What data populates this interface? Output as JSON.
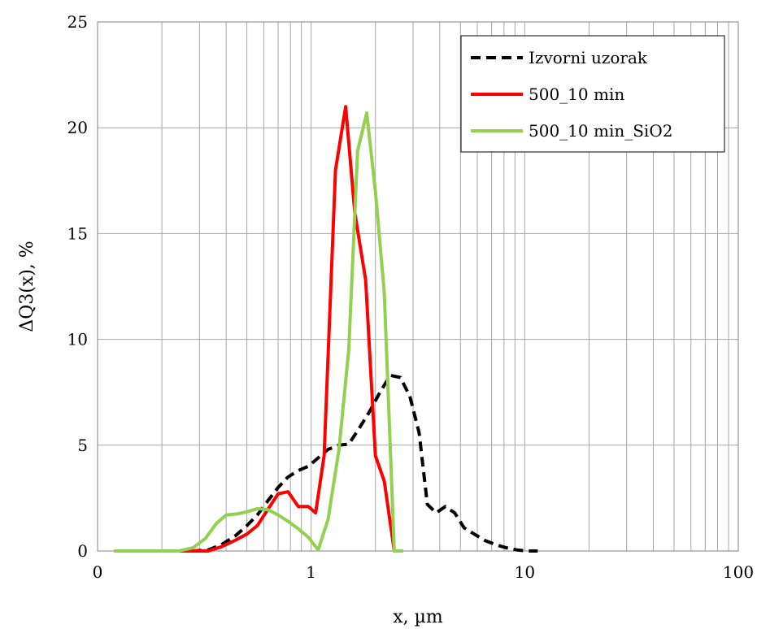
{
  "chart_data": {
    "type": "line",
    "title": "",
    "xlabel": "x, µm",
    "ylabel": "ΔQ3(x), %",
    "xscale": "log",
    "xlim": [
      0.1,
      100
    ],
    "ylim": [
      0,
      25
    ],
    "xticks": [
      0.1,
      1,
      10,
      100
    ],
    "xtick_labels": [
      "0",
      "1",
      "10",
      "100"
    ],
    "yticks": [
      0,
      5,
      10,
      15,
      20,
      25
    ],
    "ytick_labels": [
      "0",
      "5",
      "10",
      "15",
      "20",
      "25"
    ],
    "grid": true,
    "legend_position": "top-right",
    "series": [
      {
        "name": "Izvorni uzorak",
        "color": "#000000",
        "style": "dashed",
        "x": [
          0.12,
          0.14,
          0.17,
          0.2,
          0.24,
          0.28,
          0.33,
          0.38,
          0.44,
          0.5,
          0.56,
          0.63,
          0.7,
          0.78,
          0.87,
          0.97,
          1.08,
          1.2,
          1.35,
          1.5,
          1.68,
          1.88,
          2.1,
          2.35,
          2.62,
          2.9,
          3.2,
          3.5,
          3.85,
          4.25,
          4.7,
          5.2,
          5.8,
          6.5,
          7.3,
          8.2,
          9.2,
          10.3,
          11.5
        ],
        "y": [
          0,
          0,
          0,
          0,
          0,
          0,
          0.05,
          0.3,
          0.7,
          1.2,
          1.7,
          2.4,
          3.0,
          3.5,
          3.8,
          4.0,
          4.4,
          4.8,
          5.0,
          5.05,
          5.8,
          6.6,
          7.5,
          8.3,
          8.2,
          7.3,
          5.6,
          2.2,
          1.8,
          2.1,
          1.8,
          1.1,
          0.8,
          0.5,
          0.3,
          0.15,
          0.05,
          0.0,
          0.0
        ]
      },
      {
        "name": "500_10 min",
        "color": "#ff0000",
        "style": "solid",
        "x": [
          0.12,
          0.14,
          0.17,
          0.2,
          0.24,
          0.28,
          0.33,
          0.38,
          0.44,
          0.5,
          0.56,
          0.63,
          0.7,
          0.78,
          0.87,
          0.97,
          1.05,
          1.15,
          1.3,
          1.45,
          1.6,
          1.8,
          2.0,
          2.2,
          2.45,
          2.7
        ],
        "y": [
          0,
          0,
          0,
          0,
          0,
          0,
          0,
          0.2,
          0.5,
          0.8,
          1.2,
          2.0,
          2.7,
          2.8,
          2.1,
          2.1,
          1.8,
          4.5,
          18.0,
          21.0,
          16.0,
          12.8,
          4.5,
          3.3,
          0.0,
          0.0
        ]
      },
      {
        "name": "500_10 min_SiO2",
        "color": "#92d050",
        "style": "solid",
        "x": [
          0.12,
          0.14,
          0.17,
          0.2,
          0.24,
          0.28,
          0.32,
          0.36,
          0.4,
          0.45,
          0.5,
          0.56,
          0.63,
          0.7,
          0.78,
          0.87,
          0.97,
          1.08,
          1.2,
          1.35,
          1.5,
          1.65,
          1.82,
          2.0,
          2.2,
          2.45,
          2.7
        ],
        "y": [
          0,
          0,
          0,
          0,
          0,
          0.15,
          0.6,
          1.3,
          1.7,
          1.75,
          1.85,
          2.0,
          1.95,
          1.7,
          1.4,
          1.05,
          0.65,
          0.05,
          1.5,
          4.8,
          9.5,
          18.9,
          20.7,
          17.0,
          12.2,
          0.0,
          0.0
        ]
      }
    ]
  }
}
